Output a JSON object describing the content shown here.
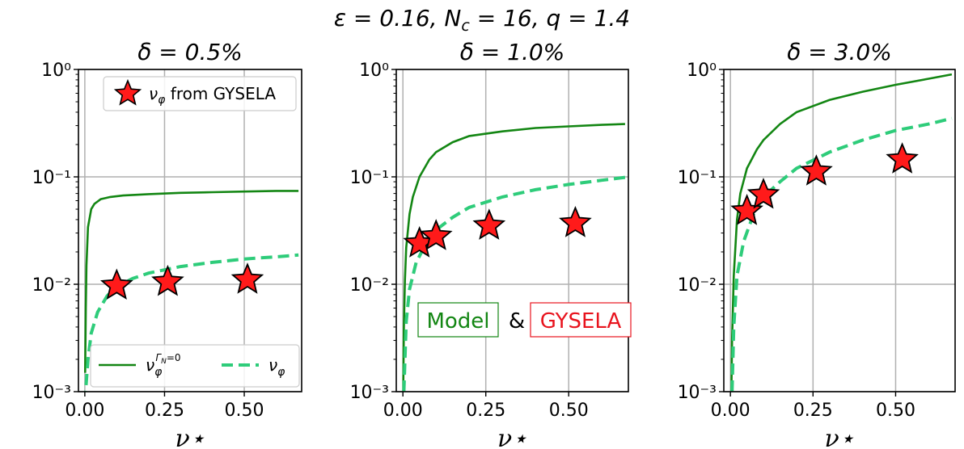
{
  "suptitle": "ε = 0.16, N_c = 16, q = 1.4",
  "colors": {
    "model": "#138613",
    "gysela_line": "#2ecc7a",
    "star": "#ff1a1a",
    "gysela_text": "#e8141e"
  },
  "chart_data": [
    {
      "type": "line",
      "title": "δ = 0.5%",
      "xlabel": "ν⋆",
      "xlim": [
        -0.02,
        0.68
      ],
      "ylim": [
        0.001,
        1
      ],
      "yscale": "log",
      "xticks": [
        "0.00",
        "0.25",
        "0.50"
      ],
      "yticks": [
        "10⁰",
        "10⁻¹",
        "10⁻²",
        "10⁻³"
      ],
      "series": [
        {
          "name": "ν_φ^{Γ_N=0}",
          "style": "solid",
          "x": [
            0.001,
            0.003,
            0.005,
            0.01,
            0.02,
            0.03,
            0.05,
            0.08,
            0.12,
            0.2,
            0.3,
            0.4,
            0.5,
            0.6,
            0.67
          ],
          "y": [
            0.0015,
            0.006,
            0.015,
            0.034,
            0.05,
            0.056,
            0.062,
            0.065,
            0.067,
            0.069,
            0.071,
            0.072,
            0.073,
            0.074,
            0.074
          ]
        },
        {
          "name": "ν_φ",
          "style": "dashed",
          "x": [
            0.0,
            0.01,
            0.02,
            0.04,
            0.07,
            0.1,
            0.15,
            0.2,
            0.3,
            0.4,
            0.5,
            0.6,
            0.67
          ],
          "y": [
            0.0008,
            0.002,
            0.0035,
            0.0055,
            0.0078,
            0.0095,
            0.0113,
            0.0127,
            0.0146,
            0.016,
            0.0172,
            0.018,
            0.0187
          ]
        },
        {
          "name": "ν_φ from GYSELA",
          "style": "star",
          "x": [
            0.1,
            0.26,
            0.51
          ],
          "y": [
            0.0097,
            0.0105,
            0.011
          ]
        }
      ],
      "legends": [
        {
          "position": "upper-right",
          "entries": [
            "ν_φ from GYSELA"
          ]
        },
        {
          "position": "lower-right",
          "entries": [
            "ν_φ^{Γ_N=0}",
            "ν_φ"
          ]
        }
      ]
    },
    {
      "type": "line",
      "title": "δ = 1.0%",
      "xlabel": "ν⋆",
      "xlim": [
        -0.02,
        0.68
      ],
      "ylim": [
        0.001,
        1
      ],
      "yscale": "log",
      "xticks": [
        "0.00",
        "0.25",
        "0.50"
      ],
      "yticks": [
        "10⁰",
        "10⁻¹",
        "10⁻²",
        "10⁻³"
      ],
      "series": [
        {
          "name": "ν_φ^{Γ_N=0}",
          "style": "solid",
          "x": [
            0.001,
            0.003,
            0.006,
            0.01,
            0.02,
            0.03,
            0.05,
            0.08,
            0.1,
            0.15,
            0.2,
            0.3,
            0.4,
            0.5,
            0.6,
            0.67
          ],
          "y": [
            0.001,
            0.004,
            0.011,
            0.022,
            0.045,
            0.065,
            0.1,
            0.145,
            0.17,
            0.21,
            0.24,
            0.265,
            0.285,
            0.295,
            0.305,
            0.31
          ]
        },
        {
          "name": "ν_φ",
          "style": "dashed",
          "x": [
            0.003,
            0.01,
            0.02,
            0.04,
            0.07,
            0.1,
            0.15,
            0.2,
            0.3,
            0.4,
            0.5,
            0.6,
            0.67
          ],
          "y": [
            0.001,
            0.0045,
            0.009,
            0.016,
            0.024,
            0.032,
            0.042,
            0.052,
            0.065,
            0.076,
            0.085,
            0.093,
            0.099
          ]
        },
        {
          "name": "ν_φ from GYSELA",
          "style": "star",
          "x": [
            0.05,
            0.1,
            0.26,
            0.52
          ],
          "y": [
            0.024,
            0.028,
            0.035,
            0.037
          ]
        }
      ],
      "annotation": {
        "model": "Model",
        "amp": "&",
        "gysela": "GYSELA"
      }
    },
    {
      "type": "line",
      "title": "δ = 3.0%",
      "xlabel": "ν⋆",
      "xlim": [
        -0.02,
        0.68
      ],
      "ylim": [
        0.001,
        1
      ],
      "yscale": "log",
      "xticks": [
        "0.00",
        "0.25",
        "0.50"
      ],
      "yticks": [
        "10⁰",
        "10⁻¹",
        "10⁻²",
        "10⁻³"
      ],
      "series": [
        {
          "name": "ν_φ^{Γ_N=0}",
          "style": "solid",
          "x": [
            0.003,
            0.005,
            0.01,
            0.02,
            0.03,
            0.05,
            0.08,
            0.1,
            0.15,
            0.2,
            0.3,
            0.4,
            0.5,
            0.6,
            0.67
          ],
          "y": [
            0.001,
            0.003,
            0.012,
            0.04,
            0.07,
            0.12,
            0.18,
            0.22,
            0.31,
            0.4,
            0.52,
            0.62,
            0.72,
            0.82,
            0.9
          ]
        },
        {
          "name": "ν_φ",
          "style": "dashed",
          "x": [
            0.005,
            0.01,
            0.02,
            0.04,
            0.07,
            0.1,
            0.15,
            0.2,
            0.3,
            0.4,
            0.5,
            0.6,
            0.67
          ],
          "y": [
            0.001,
            0.004,
            0.012,
            0.025,
            0.045,
            0.065,
            0.09,
            0.12,
            0.17,
            0.22,
            0.27,
            0.31,
            0.35
          ]
        },
        {
          "name": "ν_φ from GYSELA",
          "style": "star",
          "x": [
            0.05,
            0.1,
            0.26,
            0.52
          ],
          "y": [
            0.048,
            0.068,
            0.112,
            0.145
          ]
        }
      ]
    }
  ]
}
